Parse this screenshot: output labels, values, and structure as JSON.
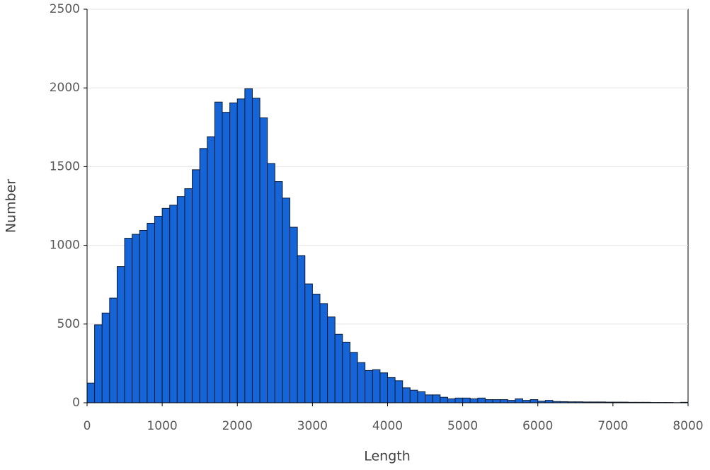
{
  "chart_data": {
    "type": "histogram",
    "xlabel": "Length",
    "ylabel": "Number",
    "bins": [
      0,
      100,
      200,
      300,
      400,
      500,
      600,
      700,
      800,
      900,
      1000,
      1100,
      1200,
      1300,
      1400,
      1500,
      1600,
      1700,
      1800,
      1900,
      2000,
      2100,
      2200,
      2300,
      2400,
      2500,
      2600,
      2700,
      2800,
      2900,
      3000,
      3100,
      3200,
      3300,
      3400,
      3500,
      3600,
      3700,
      3800,
      3900,
      4000,
      4100,
      4200,
      4300,
      4400,
      4500,
      4600,
      4700,
      4800,
      4900,
      5000,
      5100,
      5200,
      5300,
      5400,
      5500,
      5600,
      5700,
      5800,
      5900,
      6000,
      6100,
      6200,
      6300,
      6400,
      6500,
      6600,
      6700,
      6800,
      6900,
      7000,
      7100,
      7200,
      7300,
      7400,
      7500,
      7600,
      7700,
      7800,
      7900,
      8000
    ],
    "values": [
      125,
      495,
      570,
      665,
      865,
      1045,
      1070,
      1095,
      1140,
      1185,
      1235,
      1255,
      1310,
      1360,
      1480,
      1615,
      1690,
      1910,
      1845,
      1905,
      1930,
      1995,
      1935,
      1810,
      1520,
      1405,
      1300,
      1115,
      935,
      755,
      690,
      630,
      545,
      435,
      385,
      320,
      255,
      205,
      210,
      190,
      160,
      140,
      95,
      80,
      70,
      50,
      50,
      35,
      25,
      30,
      30,
      25,
      30,
      20,
      20,
      20,
      15,
      25,
      15,
      20,
      10,
      15,
      8,
      7,
      6,
      6,
      5,
      5,
      5,
      4,
      4,
      4,
      3,
      3,
      3,
      2,
      2,
      2,
      1,
      3
    ],
    "color": "#1565d8",
    "xlim": [
      0,
      8000
    ],
    "xticks": [
      0,
      1000,
      2000,
      3000,
      4000,
      5000,
      6000,
      7000,
      8000
    ],
    "ylim": [
      0,
      2500
    ],
    "yticks": [
      0,
      500,
      1000,
      1500,
      2000,
      2500
    ],
    "grid": true
  }
}
